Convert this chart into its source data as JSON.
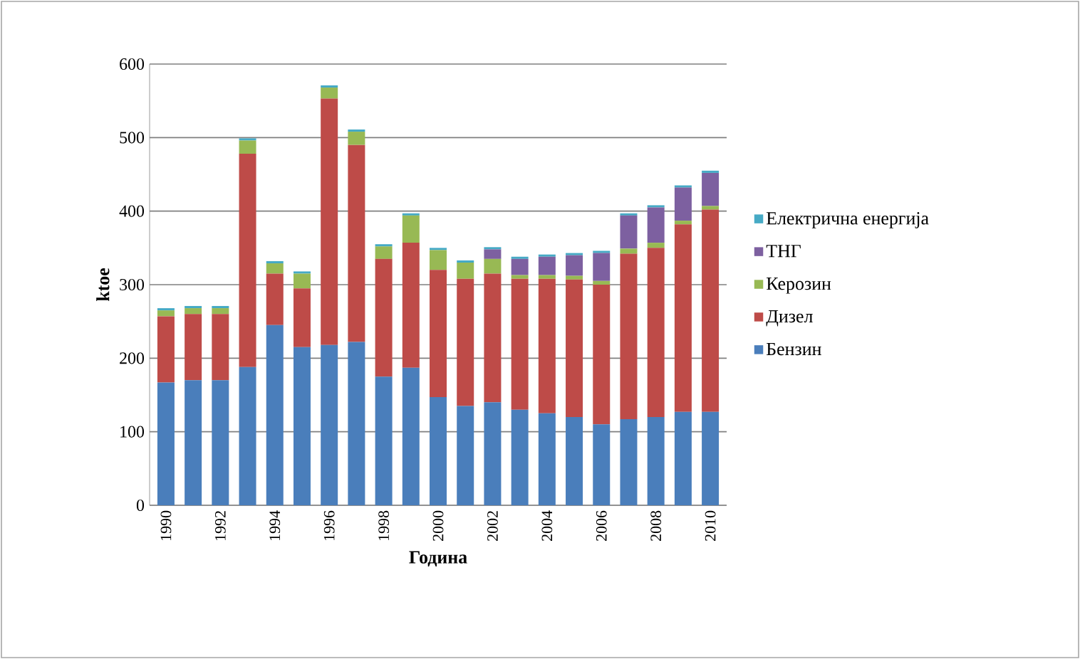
{
  "chart_data": {
    "type": "bar",
    "stacked": true,
    "xlabel": "Година",
    "ylabel": "ktoe",
    "categories": [
      "1990",
      null,
      "1992",
      null,
      "1994",
      null,
      "1996",
      null,
      "1998",
      null,
      "2000",
      null,
      "2002",
      null,
      "2004",
      null,
      "2006",
      null,
      "2008",
      null,
      "2010"
    ],
    "series": [
      {
        "name": "Бензин",
        "color": "#4a7ebb",
        "values": [
          167,
          170,
          170,
          188,
          245,
          215,
          218,
          222,
          175,
          187,
          147,
          135,
          140,
          130,
          125,
          120,
          110,
          117,
          120,
          127,
          127
        ]
      },
      {
        "name": "Дизел",
        "color": "#be4b48",
        "values": [
          90,
          90,
          90,
          290,
          70,
          80,
          335,
          268,
          160,
          170,
          173,
          173,
          175,
          178,
          183,
          187,
          190,
          225,
          230,
          255,
          275
        ]
      },
      {
        "name": "Керозин",
        "color": "#98b954",
        "values": [
          8,
          8,
          8,
          18,
          14,
          20,
          15,
          18,
          17,
          37,
          27,
          22,
          20,
          5,
          5,
          5,
          5,
          7,
          7,
          5,
          5
        ]
      },
      {
        "name": "ТНГ",
        "color": "#7d60a0",
        "values": [
          0,
          0,
          0,
          0,
          0,
          0,
          0,
          0,
          0,
          0,
          0,
          0,
          13,
          22,
          25,
          28,
          38,
          45,
          48,
          45,
          45
        ]
      },
      {
        "name": "Електрична енергија",
        "color": "#46aac5",
        "values": [
          3,
          3,
          3,
          3,
          3,
          3,
          3,
          3,
          3,
          3,
          3,
          3,
          3,
          3,
          3,
          3,
          3,
          3,
          3,
          3,
          3
        ]
      }
    ],
    "ylim": [
      0,
      600
    ],
    "yticks": [
      0,
      100,
      200,
      300,
      400,
      500,
      600
    ],
    "grid": "y",
    "legend": "right"
  }
}
